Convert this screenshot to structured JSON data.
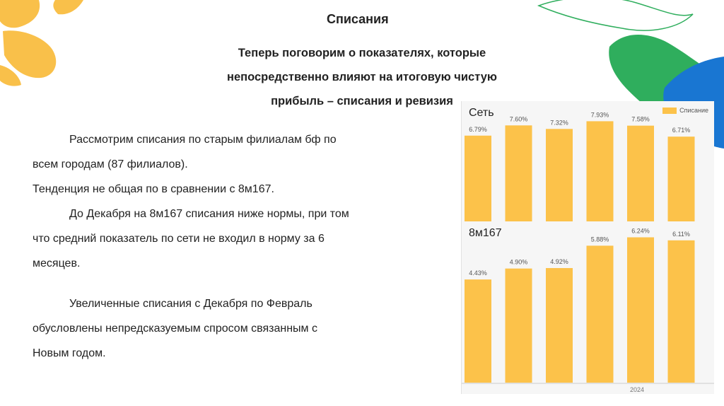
{
  "slide": {
    "title": "Списания",
    "subtitle_lines": [
      "Теперь поговорим о показателях, которые",
      "непосредственно влияют на итоговую чистую",
      "прибыль – списания и ревизия"
    ],
    "paragraphs": [
      "Рассмотрим списания по старым филиалам бф по",
      "всем городам (87 филиалов).",
      "Тенденция не общая по в сравнении с 8м167.",
      "До Декабря на 8м167 списания ниже нормы, при том",
      "что средний показатель по сети не входил в норму за 6",
      "месяцев.",
      "Увеличенные списания с Декабря по Февраль",
      "обусловлены непредсказуемым спросом связанным с",
      "Новым годом."
    ]
  },
  "colors": {
    "bar": "#fcc24a",
    "bar_label": "#555555",
    "deco_orange": "#f9c04a",
    "deco_green": "#2fae5d",
    "deco_blue": "#1976d2"
  },
  "chart_data": [
    {
      "type": "bar",
      "title": "Сеть",
      "legend": [
        "Списание"
      ],
      "legend_position": "top-right",
      "categories": [
        "",
        "",
        "",
        "",
        "",
        ""
      ],
      "series": [
        {
          "name": "Списание",
          "values": [
            6.79,
            7.6,
            7.32,
            7.93,
            7.58,
            6.71
          ]
        }
      ],
      "data_labels": [
        "6.79%",
        "7.60%",
        "7.32%",
        "7.93%",
        "7.58%",
        "6.71%"
      ],
      "ylim": [
        0,
        8.4
      ],
      "grid": false
    },
    {
      "type": "bar",
      "title": "8м167",
      "categories": [
        "",
        "",
        "",
        "",
        "",
        ""
      ],
      "series": [
        {
          "name": "Списание",
          "values": [
            4.43,
            4.9,
            4.92,
            5.88,
            6.24,
            6.11
          ]
        }
      ],
      "data_labels": [
        "4.43%",
        "4.90%",
        "4.92%",
        "5.88%",
        "6.24%",
        "6.11%"
      ],
      "x_label": "2024",
      "ylim": [
        0,
        6.62
      ],
      "grid": false
    }
  ]
}
